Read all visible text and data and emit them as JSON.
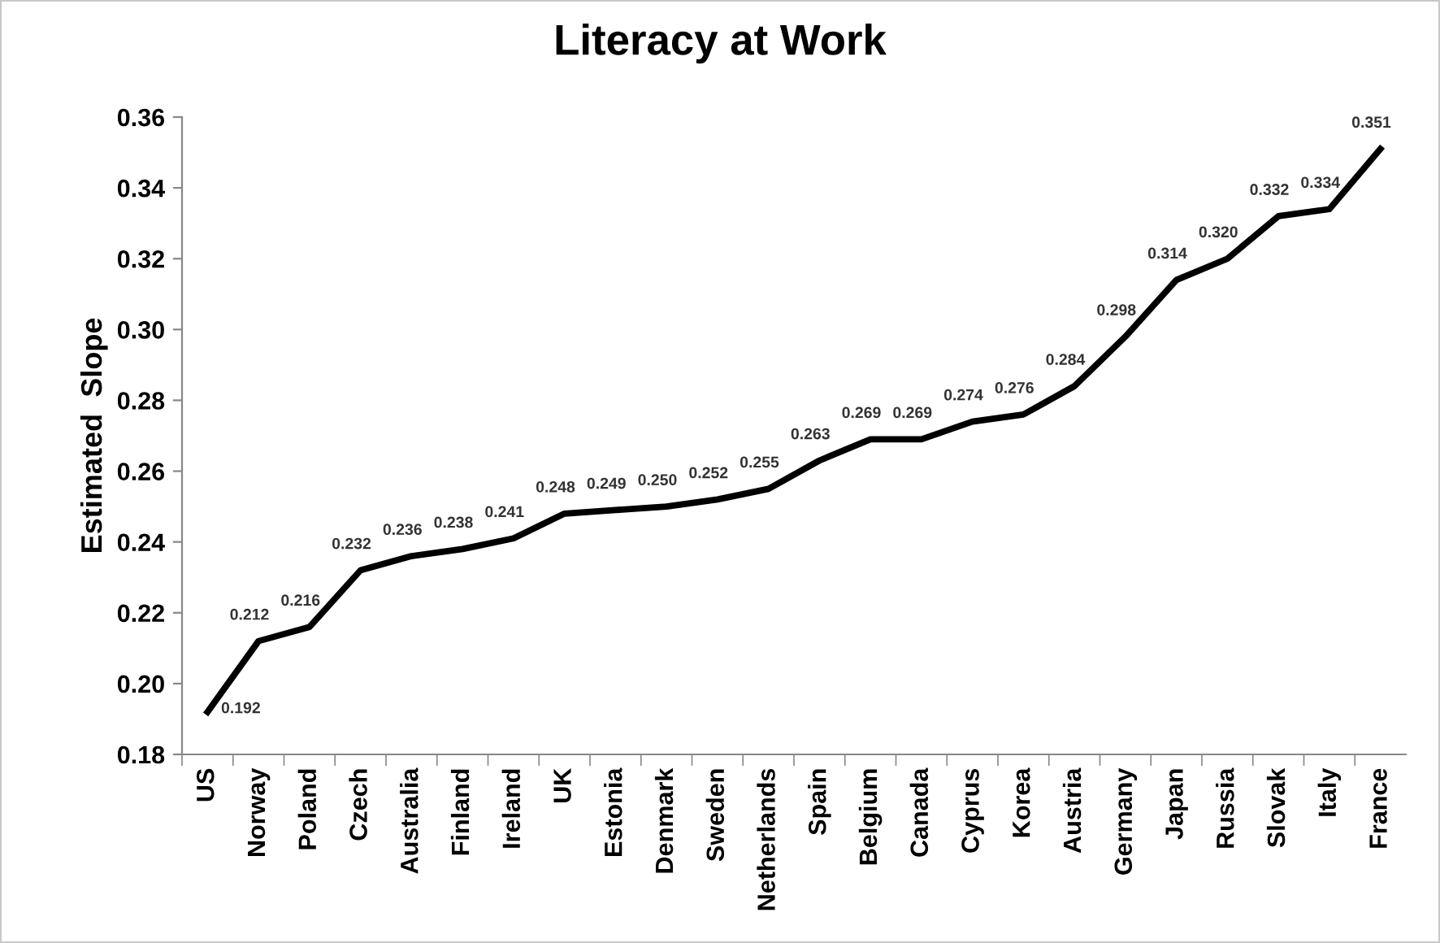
{
  "chart_data": {
    "type": "line",
    "title": "Literacy at Work",
    "ylabel": "Estimated  Slope",
    "categories": [
      "US",
      "Norway",
      "Poland",
      "Czech",
      "Australia",
      "Finland",
      "Ireland",
      "UK",
      "Estonia",
      "Denmark",
      "Sweden",
      "Netherlands",
      "Spain",
      "Belgium",
      "Canada",
      "Cyprus",
      "Korea",
      "Austria",
      "Germany",
      "Japan",
      "Russia",
      "Slovak",
      "Italy",
      "France"
    ],
    "series": [
      {
        "color": "#000000",
        "values": [
          0.192,
          0.212,
          0.216,
          0.232,
          0.236,
          0.238,
          0.241,
          0.248,
          0.249,
          0.25,
          0.252,
          0.255,
          0.263,
          0.269,
          0.269,
          0.274,
          0.276,
          0.284,
          0.298,
          0.314,
          0.32,
          0.332,
          0.334,
          0.351
        ],
        "value_labels": [
          "0.192",
          "0.212",
          "0.216",
          "0.232",
          "0.236",
          "0.238",
          "0.241",
          "0.248",
          "0.249",
          "0.250",
          "0.252",
          "0.255",
          "0.263",
          "0.269",
          "0.269",
          "0.274",
          "0.276",
          "0.284",
          "0.298",
          "0.314",
          "0.320",
          "0.332",
          "0.334",
          "0.351"
        ]
      }
    ],
    "ylim": [
      0.18,
      0.36
    ],
    "yticks": [
      {
        "value": 0.18,
        "label": "0.18"
      },
      {
        "value": 0.2,
        "label": "0.20"
      },
      {
        "value": 0.22,
        "label": "0.22"
      },
      {
        "value": 0.24,
        "label": "0.24"
      },
      {
        "value": 0.26,
        "label": "0.26"
      },
      {
        "value": 0.28,
        "label": "0.28"
      },
      {
        "value": 0.3,
        "label": "0.30"
      },
      {
        "value": 0.32,
        "label": "0.32"
      },
      {
        "value": 0.34,
        "label": "0.34"
      },
      {
        "value": 0.36,
        "label": "0.36"
      }
    ],
    "grid": false,
    "legend": false,
    "marker": "none",
    "line_style": "solid"
  }
}
